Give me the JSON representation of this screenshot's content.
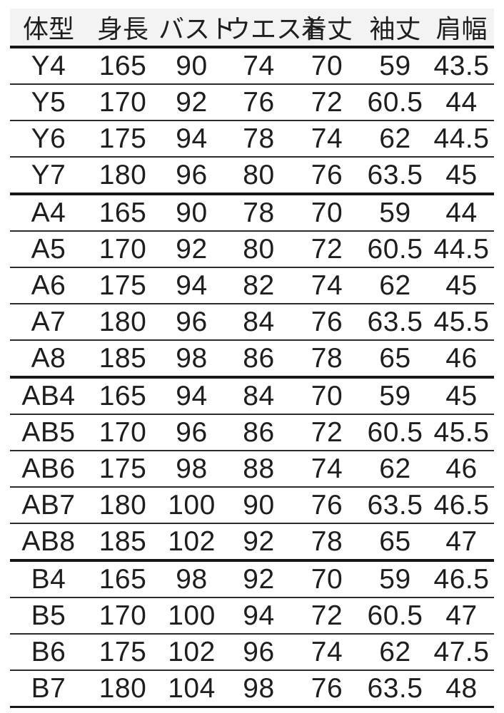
{
  "colors": {
    "page_bg": "#ffffff",
    "header_bg": "#f3f3f3",
    "text_color": "#1e1e1e",
    "line_thin": "#2b2b2b",
    "line_heavy": "#161616"
  },
  "chart_data": {
    "type": "table",
    "title": "",
    "columns": [
      "体型",
      "身長",
      "バスト",
      "ウエスト",
      "着丈",
      "袖丈",
      "肩幅"
    ],
    "group_sizes": [
      4,
      5,
      5,
      4
    ],
    "rows": [
      [
        "Y4",
        "165",
        "90",
        "74",
        "70",
        "59",
        "43.5"
      ],
      [
        "Y5",
        "170",
        "92",
        "76",
        "72",
        "60.5",
        "44"
      ],
      [
        "Y6",
        "175",
        "94",
        "78",
        "74",
        "62",
        "44.5"
      ],
      [
        "Y7",
        "180",
        "96",
        "80",
        "76",
        "63.5",
        "45"
      ],
      [
        "A4",
        "165",
        "90",
        "78",
        "70",
        "59",
        "44"
      ],
      [
        "A5",
        "170",
        "92",
        "80",
        "72",
        "60.5",
        "44.5"
      ],
      [
        "A6",
        "175",
        "94",
        "82",
        "74",
        "62",
        "45"
      ],
      [
        "A7",
        "180",
        "96",
        "84",
        "76",
        "63.5",
        "45.5"
      ],
      [
        "A8",
        "185",
        "98",
        "86",
        "78",
        "65",
        "46"
      ],
      [
        "AB4",
        "165",
        "94",
        "84",
        "70",
        "59",
        "45"
      ],
      [
        "AB5",
        "170",
        "96",
        "86",
        "72",
        "60.5",
        "45.5"
      ],
      [
        "AB6",
        "175",
        "98",
        "88",
        "74",
        "62",
        "46"
      ],
      [
        "AB7",
        "180",
        "100",
        "90",
        "76",
        "63.5",
        "46.5"
      ],
      [
        "AB8",
        "185",
        "102",
        "92",
        "78",
        "65",
        "47"
      ],
      [
        "B4",
        "165",
        "98",
        "92",
        "70",
        "59",
        "46.5"
      ],
      [
        "B5",
        "170",
        "100",
        "94",
        "72",
        "60.5",
        "47"
      ],
      [
        "B6",
        "175",
        "102",
        "96",
        "74",
        "62",
        "47.5"
      ],
      [
        "B7",
        "180",
        "104",
        "98",
        "76",
        "63.5",
        "48"
      ]
    ]
  }
}
